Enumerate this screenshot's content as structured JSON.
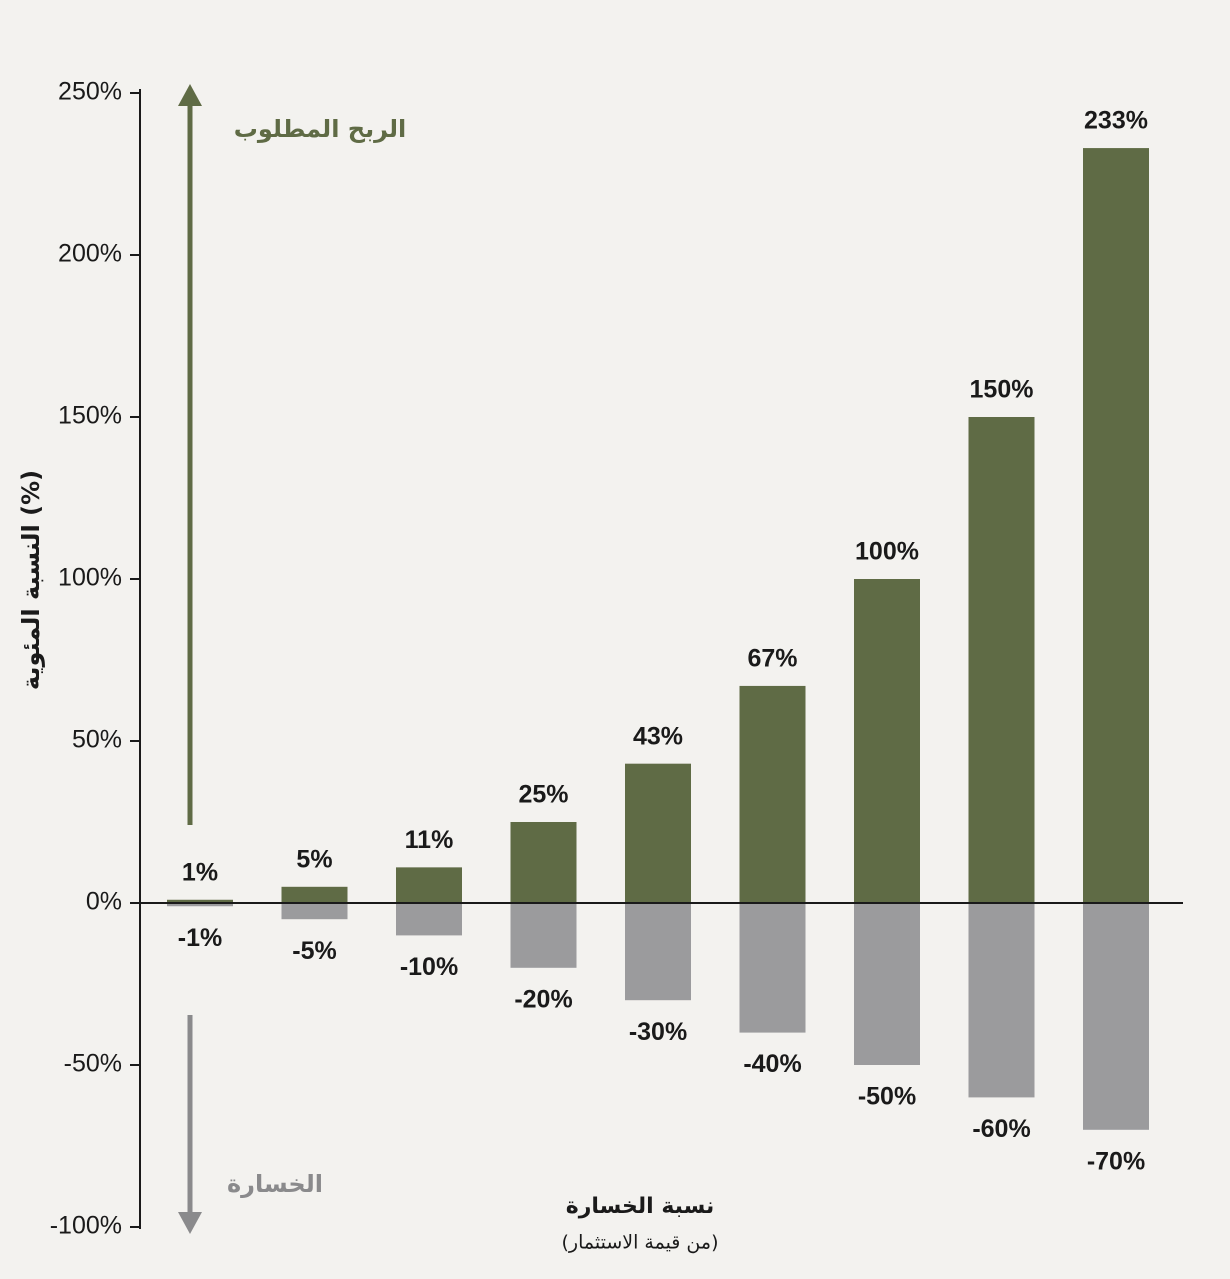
{
  "chart_data": {
    "type": "bar",
    "ylabel": "النسبة المئوية (%)",
    "xlabel": "نسبة الخسارة",
    "xlabel_subtitle": "(من قيمة الاستثمار)",
    "categories": [
      null,
      null,
      null,
      null,
      null,
      null,
      null,
      null,
      null
    ],
    "series": [
      {
        "name": "الربح المطلوب",
        "color": "#5f6b45",
        "values": [
          1,
          5,
          11,
          25,
          43,
          67,
          100,
          150,
          233
        ],
        "value_labels": [
          "1%",
          "5%",
          "11%",
          "25%",
          "43%",
          "67%",
          "100%",
          "150%",
          "233%"
        ]
      },
      {
        "name": "الخسارة",
        "color": "#9b9b9d",
        "values": [
          -1,
          -5,
          -10,
          -20,
          -30,
          -40,
          -50,
          -60,
          -70
        ],
        "value_labels": [
          "-1%",
          "-5%",
          "-10%",
          "-20%",
          "-30%",
          "-40%",
          "-50%",
          "-60%",
          "-70%"
        ]
      }
    ],
    "ylim": [
      -100,
      250
    ],
    "yticks": [
      {
        "value": -100,
        "label": "-100%"
      },
      {
        "value": -50,
        "label": "-50%"
      },
      {
        "value": 0,
        "label": "0%"
      },
      {
        "value": 50,
        "label": "50%"
      },
      {
        "value": 100,
        "label": "100%"
      },
      {
        "value": 150,
        "label": "150%"
      },
      {
        "value": 200,
        "label": "200%"
      },
      {
        "value": 250,
        "label": "250%"
      }
    ]
  }
}
